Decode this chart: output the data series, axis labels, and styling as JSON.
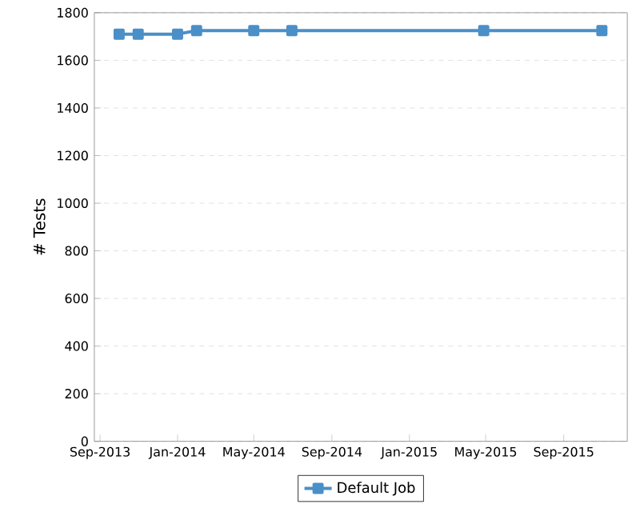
{
  "chart_data": {
    "type": "line",
    "ylabel": "# Tests",
    "x": [
      "2013-10-01",
      "2013-10-31",
      "2014-01-01",
      "2014-01-31",
      "2014-05-01",
      "2014-06-30",
      "2015-04-28",
      "2015-10-31"
    ],
    "series": [
      {
        "name": "Default Job",
        "color": "#4a8fc8",
        "values": [
          1710,
          1710,
          1710,
          1725,
          1725,
          1725,
          1725,
          1725
        ]
      }
    ],
    "xlim": [
      "2013-08-23",
      "2015-12-10"
    ],
    "xticks": [
      {
        "value": "2013-09-01",
        "label": "Sep-2013"
      },
      {
        "value": "2014-01-01",
        "label": "Jan-2014"
      },
      {
        "value": "2014-05-01",
        "label": "May-2014"
      },
      {
        "value": "2014-09-01",
        "label": "Sep-2014"
      },
      {
        "value": "2015-01-01",
        "label": "Jan-2015"
      },
      {
        "value": "2015-05-01",
        "label": "May-2015"
      },
      {
        "value": "2015-09-01",
        "label": "Sep-2015"
      }
    ],
    "ylim": [
      0,
      1800
    ],
    "yticks": [
      0,
      200,
      400,
      600,
      800,
      1000,
      1200,
      1400,
      1600,
      1800
    ],
    "grid": "y",
    "legend": "bottom",
    "marker": "square",
    "line_style": "solid"
  }
}
